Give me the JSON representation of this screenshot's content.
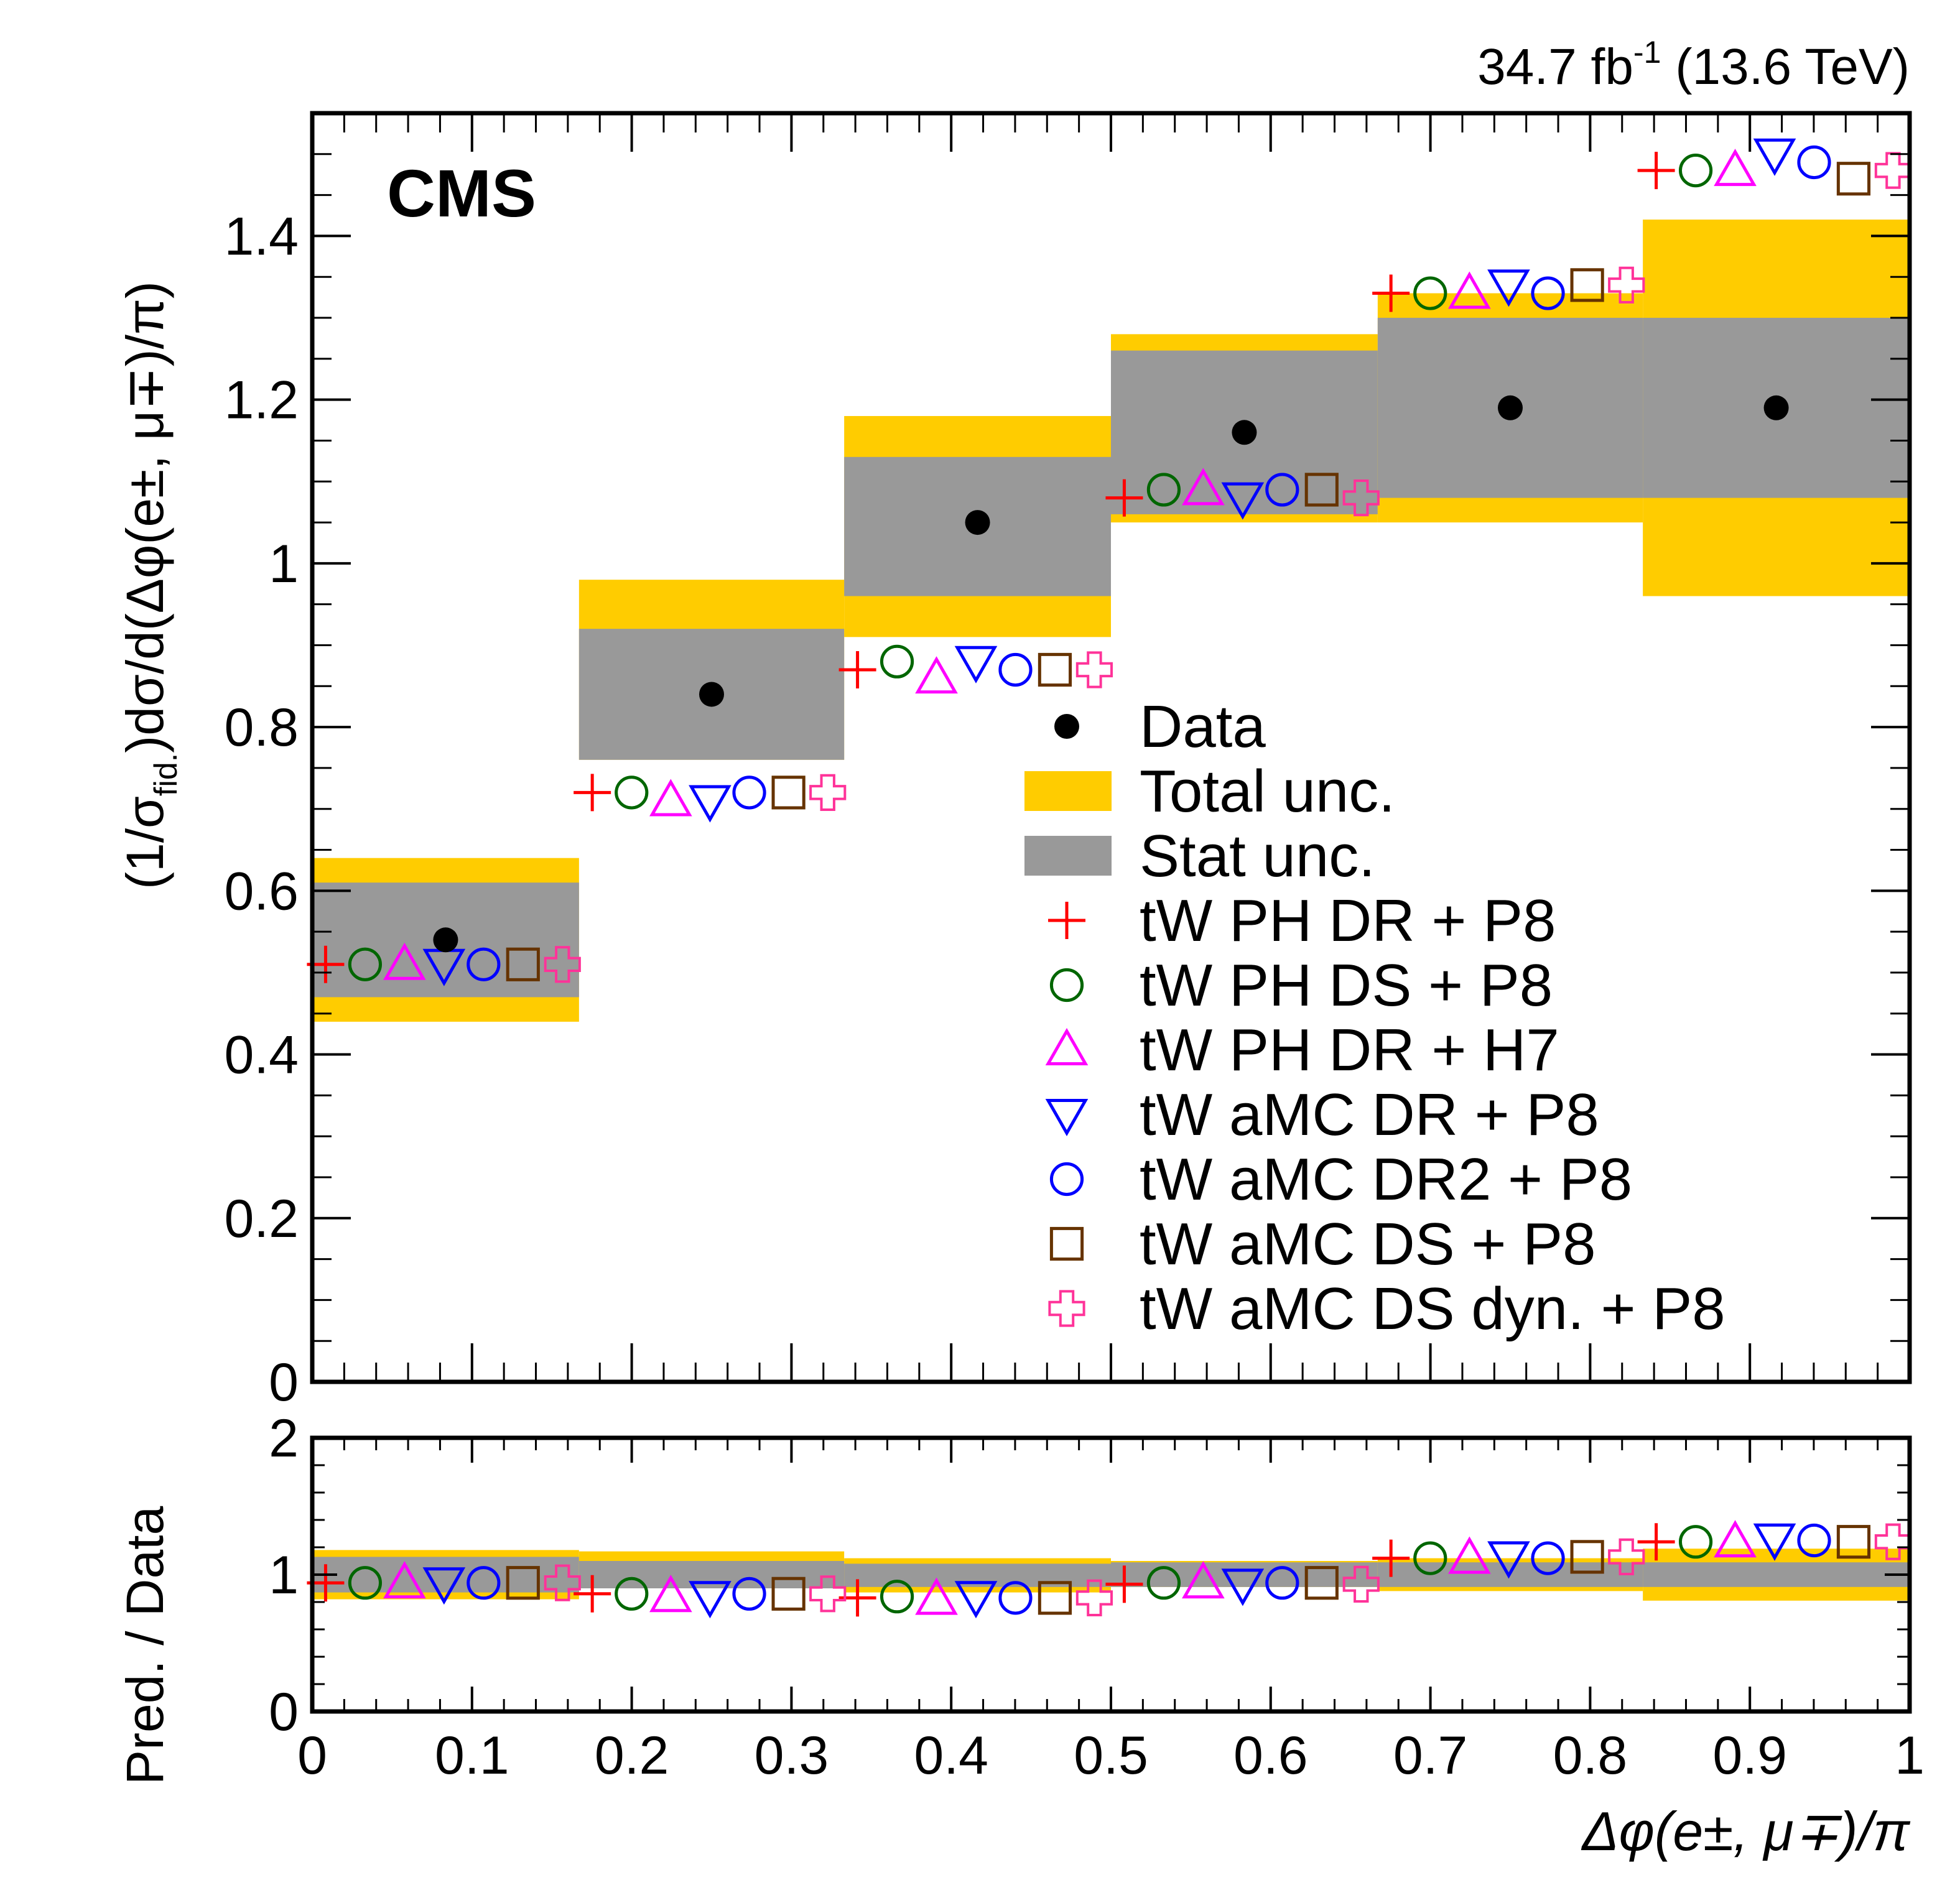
{
  "header": {
    "lumi": "34.7",
    "lumi_unit": "fb",
    "lumi_exp": "-1",
    "energy": "(13.6 TeV)",
    "experiment": "CMS"
  },
  "labels": {
    "y_main_prefix": "(1/σ",
    "y_main_sub": "fid.",
    "y_main_suffix": ")dσ/d(Δφ(e±, μ∓)/π)",
    "y_ratio": "Pred. / Data",
    "x": "Δφ(e±, μ∓)/π"
  },
  "colors": {
    "total_unc": "#ffcc00",
    "stat_unc": "#999999",
    "data": "#000000",
    "PH_DR_P8": "#ff0000",
    "PH_DS_P8": "#006600",
    "PH_DR_H7": "#ff00ff",
    "aMC_DR_P8": "#0000ff",
    "aMC_DR2_P8": "#0000ff",
    "aMC_DS_P8": "#663300",
    "aMC_DSdyn_P8": "#ff3399"
  },
  "chart_data": [
    {
      "type": "scatter",
      "panel": "main",
      "bin_edges": [
        0,
        0.167,
        0.333,
        0.5,
        0.667,
        0.833,
        1.0
      ],
      "xlim": [
        0,
        1
      ],
      "ylim": [
        0,
        1.55
      ],
      "y_ticks": [
        "0",
        "0.2",
        "0.4",
        "0.6",
        "0.8",
        "1",
        "1.2",
        "1.4"
      ],
      "x_ticks": [
        "0",
        "0.1",
        "0.2",
        "0.3",
        "0.4",
        "0.5",
        "0.6",
        "0.7",
        "0.8",
        "0.9",
        "1"
      ],
      "data": {
        "name": "Data",
        "values": [
          0.54,
          0.84,
          1.05,
          1.16,
          1.19,
          1.19
        ],
        "total_unc": [
          [
            0.44,
            0.64
          ],
          [
            0.76,
            0.98
          ],
          [
            0.91,
            1.18
          ],
          [
            1.05,
            1.28
          ],
          [
            1.05,
            1.33
          ],
          [
            0.96,
            1.42
          ]
        ],
        "stat_unc": [
          [
            0.47,
            0.61
          ],
          [
            0.76,
            0.92
          ],
          [
            0.96,
            1.13
          ],
          [
            1.06,
            1.26
          ],
          [
            1.08,
            1.3
          ],
          [
            1.08,
            1.3
          ]
        ]
      },
      "series": [
        {
          "name": "tW PH DR + P8",
          "marker": "plus",
          "color_key": "PH_DR_P8",
          "values": [
            0.51,
            0.72,
            0.87,
            1.08,
            1.33,
            1.48
          ]
        },
        {
          "name": "tW PH DS + P8",
          "marker": "circle",
          "color_key": "PH_DS_P8",
          "values": [
            0.51,
            0.72,
            0.88,
            1.09,
            1.33,
            1.48
          ]
        },
        {
          "name": "tW PH DR + H7",
          "marker": "triangle-up",
          "color_key": "PH_DR_H7",
          "values": [
            0.51,
            0.71,
            0.86,
            1.09,
            1.33,
            1.48
          ]
        },
        {
          "name": "tW aMC DR + P8",
          "marker": "triangle-down",
          "color_key": "aMC_DR_P8",
          "values": [
            0.51,
            0.71,
            0.88,
            1.08,
            1.34,
            1.5
          ]
        },
        {
          "name": "tW aMC DR2 + P8",
          "marker": "circle",
          "color_key": "aMC_DR2_P8",
          "values": [
            0.51,
            0.72,
            0.87,
            1.09,
            1.33,
            1.49
          ]
        },
        {
          "name": "tW aMC DS + P8",
          "marker": "square",
          "color_key": "aMC_DS_P8",
          "values": [
            0.51,
            0.72,
            0.87,
            1.09,
            1.34,
            1.47
          ]
        },
        {
          "name": "tW aMC DS dyn. + P8",
          "marker": "cross",
          "color_key": "aMC_DSdyn_P8",
          "values": [
            0.51,
            0.72,
            0.87,
            1.08,
            1.34,
            1.48
          ]
        }
      ],
      "legend": {
        "placement": "right",
        "entries": [
          "Data",
          "Total unc.",
          "Stat unc.",
          "tW PH DR + P8",
          "tW PH DS + P8",
          "tW PH DR + H7",
          "tW aMC DR + P8",
          "tW aMC DR2 + P8",
          "tW aMC DS + P8",
          "tW aMC DS dyn. + P8"
        ]
      }
    },
    {
      "type": "scatter",
      "panel": "ratio",
      "xlim": [
        0,
        1
      ],
      "ylim": [
        0,
        2
      ],
      "y_ticks": [
        "0",
        "1",
        "2"
      ],
      "total_unc": [
        [
          0.82,
          1.18
        ],
        [
          0.9,
          1.17
        ],
        [
          0.87,
          1.12
        ],
        [
          0.91,
          1.1
        ],
        [
          0.88,
          1.12
        ],
        [
          0.81,
          1.19
        ]
      ],
      "stat_unc": [
        [
          0.87,
          1.13
        ],
        [
          0.9,
          1.1
        ],
        [
          0.91,
          1.08
        ],
        [
          0.91,
          1.09
        ],
        [
          0.91,
          1.09
        ],
        [
          0.91,
          1.09
        ]
      ],
      "series": [
        {
          "name": "tW PH DR + P8",
          "values": [
            0.94,
            0.86,
            0.83,
            0.93,
            1.12,
            1.24
          ]
        },
        {
          "name": "tW PH DS + P8",
          "values": [
            0.94,
            0.86,
            0.84,
            0.94,
            1.12,
            1.24
          ]
        },
        {
          "name": "tW PH DR + H7",
          "values": [
            0.94,
            0.84,
            0.82,
            0.94,
            1.12,
            1.24
          ]
        },
        {
          "name": "tW aMC DR + P8",
          "values": [
            0.94,
            0.84,
            0.84,
            0.93,
            1.13,
            1.26
          ]
        },
        {
          "name": "tW aMC DR2 + P8",
          "values": [
            0.94,
            0.86,
            0.83,
            0.94,
            1.12,
            1.25
          ]
        },
        {
          "name": "tW aMC DS + P8",
          "values": [
            0.94,
            0.86,
            0.83,
            0.94,
            1.13,
            1.24
          ]
        },
        {
          "name": "tW aMC DS dyn. + P8",
          "values": [
            0.94,
            0.86,
            0.83,
            0.93,
            1.13,
            1.24
          ]
        }
      ]
    }
  ]
}
